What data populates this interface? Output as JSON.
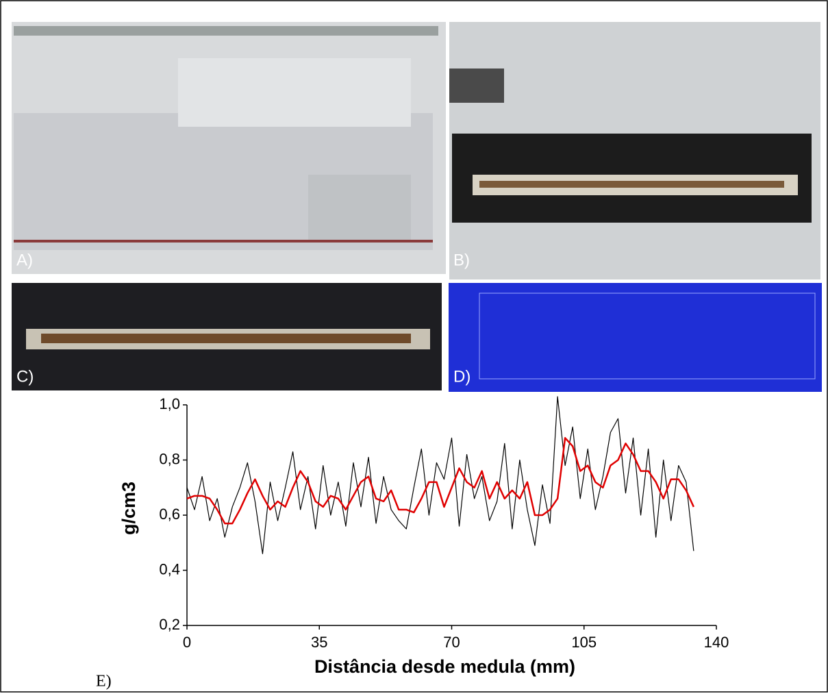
{
  "panels": {
    "a": "A)",
    "b": "B)",
    "c": "C)",
    "d": "D)",
    "e": "E)"
  },
  "chart_data": {
    "type": "line",
    "xlabel": "Distância desde medula (mm)",
    "ylabel": "g/cm3",
    "xlim": [
      0,
      140
    ],
    "xticks": [
      0,
      35,
      70,
      105,
      140
    ],
    "ylim": [
      0.2,
      1.0
    ],
    "yticks": [
      {
        "value": 0.2,
        "label": "0,2"
      },
      {
        "value": 0.4,
        "label": "0,4"
      },
      {
        "value": 0.6,
        "label": "0,6"
      },
      {
        "value": 0.8,
        "label": "0,8"
      },
      {
        "value": 1.0,
        "label": "1,0"
      }
    ],
    "x": [
      0,
      2,
      4,
      6,
      8,
      10,
      12,
      14,
      16,
      18,
      20,
      22,
      24,
      26,
      28,
      30,
      32,
      34,
      36,
      38,
      40,
      42,
      44,
      46,
      48,
      50,
      52,
      54,
      56,
      58,
      60,
      62,
      64,
      66,
      68,
      70,
      72,
      74,
      76,
      78,
      80,
      82,
      84,
      86,
      88,
      90,
      92,
      94,
      96,
      98,
      100,
      102,
      104,
      106,
      108,
      110,
      112,
      114,
      116,
      118,
      120,
      122,
      124,
      126,
      128,
      130,
      132,
      134
    ],
    "series": [
      {
        "color": "#000000",
        "width": 1.2,
        "values": [
          0.7,
          0.62,
          0.74,
          0.58,
          0.66,
          0.52,
          0.63,
          0.7,
          0.79,
          0.65,
          0.46,
          0.72,
          0.58,
          0.7,
          0.83,
          0.62,
          0.74,
          0.55,
          0.78,
          0.6,
          0.72,
          0.56,
          0.79,
          0.63,
          0.81,
          0.57,
          0.74,
          0.62,
          0.58,
          0.55,
          0.7,
          0.84,
          0.6,
          0.79,
          0.73,
          0.88,
          0.56,
          0.82,
          0.66,
          0.74,
          0.58,
          0.65,
          0.86,
          0.55,
          0.8,
          0.62,
          0.49,
          0.71,
          0.57,
          1.03,
          0.78,
          0.92,
          0.66,
          0.84,
          0.62,
          0.74,
          0.9,
          0.95,
          0.68,
          0.88,
          0.6,
          0.84,
          0.52,
          0.8,
          0.58,
          0.78,
          0.72,
          0.47
        ]
      },
      {
        "color": "#e00000",
        "width": 2.5,
        "values": [
          0.66,
          0.67,
          0.67,
          0.66,
          0.62,
          0.57,
          0.57,
          0.62,
          0.68,
          0.73,
          0.67,
          0.62,
          0.65,
          0.63,
          0.7,
          0.76,
          0.72,
          0.65,
          0.63,
          0.67,
          0.66,
          0.62,
          0.67,
          0.72,
          0.74,
          0.66,
          0.65,
          0.69,
          0.62,
          0.62,
          0.61,
          0.66,
          0.72,
          0.72,
          0.63,
          0.7,
          0.77,
          0.72,
          0.7,
          0.76,
          0.66,
          0.72,
          0.66,
          0.69,
          0.66,
          0.72,
          0.6,
          0.6,
          0.62,
          0.66,
          0.88,
          0.85,
          0.76,
          0.78,
          0.72,
          0.7,
          0.78,
          0.8,
          0.86,
          0.82,
          0.76,
          0.76,
          0.72,
          0.66,
          0.73,
          0.73,
          0.69,
          0.63
        ]
      }
    ]
  }
}
